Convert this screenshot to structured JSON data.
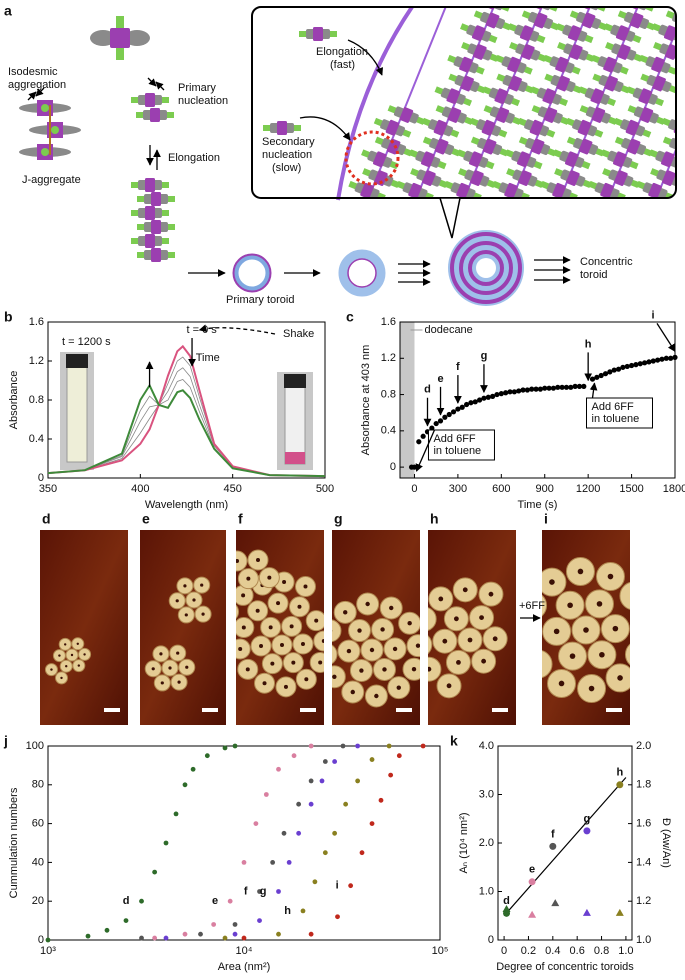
{
  "panel_labels": [
    "a",
    "b",
    "c",
    "d",
    "e",
    "f",
    "g",
    "h",
    "i",
    "j",
    "k"
  ],
  "diagram": {
    "isodesmic": [
      "Isodesmic",
      "aggregation"
    ],
    "primary_nucleation": [
      "Primary",
      "nucleation"
    ],
    "elongation": "Elongation",
    "j_aggregate": "J-aggregate",
    "elongation_fast": [
      "Elongation",
      "(fast)"
    ],
    "secondary_nucleation": [
      "Secondary",
      "nucleation",
      "(slow)"
    ],
    "primary_toroid": "Primary toroid",
    "concentric_toroid": [
      "Concentric",
      "toroid"
    ]
  },
  "afm": {
    "plus_label": "+6FF"
  },
  "chart_data": [
    {
      "type": "line",
      "xlabel": "Wavelength (nm)",
      "ylabel": "Absorbance",
      "xlim": [
        350,
        500
      ],
      "xticks": [
        350,
        400,
        450,
        500
      ],
      "ylim": [
        0,
        1.6
      ],
      "yticks": [
        0,
        0.4,
        0.8,
        1.2,
        1.6
      ],
      "x": [
        350,
        370,
        390,
        400,
        405,
        410,
        415,
        420,
        423,
        427,
        432,
        440,
        450,
        470,
        500
      ],
      "series": [
        {
          "color": "#888888",
          "values": [
            0.05,
            0.08,
            0.2,
            0.46,
            0.61,
            0.75,
            0.97,
            1.2,
            1.24,
            1.15,
            0.83,
            0.34,
            0.12,
            0.03,
            0.02
          ]
        },
        {
          "color": "#888888",
          "values": [
            0.05,
            0.08,
            0.22,
            0.58,
            0.73,
            0.75,
            0.89,
            1.09,
            1.13,
            1.04,
            0.75,
            0.33,
            0.11,
            0.03,
            0.02
          ]
        },
        {
          "color": "#888888",
          "values": [
            0.05,
            0.08,
            0.23,
            0.69,
            0.84,
            0.75,
            0.8,
            0.99,
            1.01,
            0.93,
            0.68,
            0.31,
            0.1,
            0.03,
            0.02
          ]
        },
        {
          "name": "t = 0 s",
          "color": "#d9537f",
          "values": [
            0.05,
            0.08,
            0.18,
            0.35,
            0.5,
            0.75,
            1.05,
            1.3,
            1.35,
            1.25,
            0.9,
            0.35,
            0.12,
            0.03,
            0.02
          ]
        },
        {
          "name": "t = 1200 s",
          "color": "#3e8a3a",
          "values": [
            0.05,
            0.08,
            0.25,
            0.8,
            0.95,
            0.75,
            0.72,
            0.88,
            0.9,
            0.82,
            0.6,
            0.3,
            0.1,
            0.03,
            0.02
          ]
        }
      ],
      "annotations": {
        "time": "Time",
        "shake": "Shake"
      }
    },
    {
      "type": "scatter",
      "xlabel": "Time (s)",
      "ylabel": "Absorbance at 403 nm",
      "xlim": [
        -100,
        1800
      ],
      "xticks": [
        0,
        300,
        600,
        900,
        1200,
        1500,
        1800
      ],
      "ylim": [
        -0.12,
        1.6
      ],
      "yticks": [
        0,
        0.4,
        0.8,
        1.2,
        1.6
      ],
      "color": "#000000",
      "x": [
        -20,
        0,
        30,
        60,
        90,
        120,
        150,
        180,
        210,
        240,
        270,
        300,
        330,
        360,
        390,
        420,
        450,
        480,
        510,
        540,
        570,
        600,
        630,
        660,
        690,
        720,
        750,
        780,
        810,
        840,
        870,
        900,
        930,
        960,
        990,
        1020,
        1050,
        1080,
        1110,
        1140,
        1170,
        1230,
        1260,
        1290,
        1320,
        1350,
        1380,
        1410,
        1440,
        1470,
        1500,
        1530,
        1560,
        1590,
        1620,
        1650,
        1680,
        1710,
        1740,
        1770,
        1800
      ],
      "values": [
        0,
        0,
        0.28,
        0.34,
        0.39,
        0.43,
        0.48,
        0.51,
        0.55,
        0.58,
        0.61,
        0.64,
        0.66,
        0.69,
        0.71,
        0.72,
        0.74,
        0.76,
        0.77,
        0.78,
        0.8,
        0.81,
        0.82,
        0.83,
        0.83,
        0.84,
        0.85,
        0.85,
        0.86,
        0.86,
        0.86,
        0.87,
        0.87,
        0.87,
        0.88,
        0.88,
        0.88,
        0.88,
        0.89,
        0.89,
        0.89,
        0.97,
        0.99,
        1.01,
        1.03,
        1.05,
        1.07,
        1.08,
        1.1,
        1.11,
        1.12,
        1.13,
        1.14,
        1.15,
        1.16,
        1.17,
        1.18,
        1.19,
        1.2,
        1.2,
        1.21
      ],
      "shaded": {
        "xlim": [
          -100,
          0
        ],
        "label": "dodecane"
      },
      "samples": {
        "labels": [
          "d",
          "e",
          "f",
          "g",
          "h",
          "i"
        ],
        "x": [
          90,
          180,
          300,
          480,
          1200,
          1800
        ]
      },
      "notes": [
        {
          "text": [
            "Add 6FF",
            "in toluene"
          ],
          "x": 0
        },
        {
          "text": [
            "Add 6FF",
            "in toluene"
          ],
          "x": 1230
        }
      ]
    },
    {
      "type": "scatter",
      "xlabel": "Area (nm²)",
      "ylabel": "Cummulation numbers",
      "xscale": "log",
      "xlim": [
        1000,
        100000
      ],
      "xticks": [
        {
          "value": 1000,
          "label": "10³"
        },
        {
          "value": 10000,
          "label": "10⁴"
        },
        {
          "value": 100000,
          "label": "10⁵"
        }
      ],
      "ylim": [
        0,
        100
      ],
      "yticks": [
        0,
        20,
        40,
        60,
        80,
        100
      ],
      "series": [
        {
          "name": "d",
          "color": "#2e6b2a",
          "x": [
            1000,
            1600,
            2000,
            2500,
            3000,
            3500,
            4000,
            4500,
            5000,
            5500,
            6500,
            8000,
            9000
          ],
          "values": [
            0,
            2,
            5,
            10,
            20,
            35,
            50,
            65,
            80,
            88,
            95,
            99,
            100
          ]
        },
        {
          "name": "e",
          "color": "#d97fa0",
          "x": [
            3500,
            5000,
            7000,
            8500,
            10000,
            11500,
            13000,
            15000,
            18000,
            22000
          ],
          "values": [
            1,
            3,
            8,
            20,
            40,
            60,
            75,
            88,
            95,
            100
          ]
        },
        {
          "name": "f",
          "color": "#555555",
          "x": [
            3000,
            6000,
            9000,
            12000,
            14000,
            16000,
            19000,
            22000,
            26000,
            32000
          ],
          "values": [
            1,
            3,
            8,
            25,
            40,
            55,
            70,
            82,
            92,
            100
          ]
        },
        {
          "name": "g",
          "color": "#6a3fd0",
          "x": [
            4000,
            9000,
            12000,
            15000,
            17000,
            19000,
            22000,
            25000,
            29000,
            38000
          ],
          "values": [
            1,
            3,
            10,
            25,
            40,
            55,
            70,
            82,
            92,
            100
          ]
        },
        {
          "name": "h",
          "color": "#8a8020",
          "x": [
            8000,
            15000,
            20000,
            23000,
            26000,
            29000,
            33000,
            38000,
            45000,
            55000
          ],
          "values": [
            1,
            3,
            15,
            30,
            45,
            55,
            70,
            82,
            93,
            100
          ]
        },
        {
          "name": "i",
          "color": "#c0281c",
          "x": [
            10000,
            22000,
            30000,
            35000,
            40000,
            45000,
            50000,
            56000,
            62000,
            82000
          ],
          "values": [
            1,
            3,
            12,
            28,
            45,
            60,
            72,
            85,
            95,
            100
          ]
        }
      ]
    },
    {
      "type": "scatter",
      "xlabel": "Degree of concentric toroids",
      "ylabel": "Aₙ (10⁴ nm²)",
      "y2label": "Đ (Aw/An)",
      "xlim": [
        -0.05,
        1.05
      ],
      "xticks": [
        0,
        0.2,
        0.4,
        0.6,
        0.8,
        {
          "value": 1,
          "label": "1.0"
        }
      ],
      "ylim": [
        0,
        4
      ],
      "yticks": [
        0,
        {
          "value": 1,
          "label": "1.0"
        },
        {
          "value": 2,
          "label": "2.0"
        },
        {
          "value": 3,
          "label": "3.0"
        },
        {
          "value": 4,
          "label": "4.0"
        }
      ],
      "y2lim": [
        1,
        2
      ],
      "y2ticks": [
        {
          "value": 1,
          "label": "1.0"
        },
        1.2,
        1.4,
        1.6,
        1.8,
        {
          "value": 2,
          "label": "2.0"
        }
      ],
      "labels": [
        "d",
        "e",
        "f",
        "g",
        "h"
      ],
      "colors": [
        "#2e6b2a",
        "#d97fa0",
        "#555555",
        "#6a3fd0",
        "#8a8020"
      ],
      "series": [
        {
          "marker": "circle",
          "x": [
            0.02,
            0.23,
            0.4,
            0.68,
            0.95
          ],
          "values": [
            0.55,
            1.2,
            1.93,
            2.25,
            3.2
          ]
        },
        {
          "marker": "triangle",
          "axis": "y2",
          "x": [
            0.02,
            0.23,
            0.42,
            0.68,
            0.95
          ],
          "values": [
            1.16,
            1.13,
            1.19,
            1.14,
            1.14
          ]
        }
      ],
      "fit": {
        "x": [
          0,
          1
        ],
        "values": [
          0.5,
          3.35
        ]
      }
    }
  ]
}
